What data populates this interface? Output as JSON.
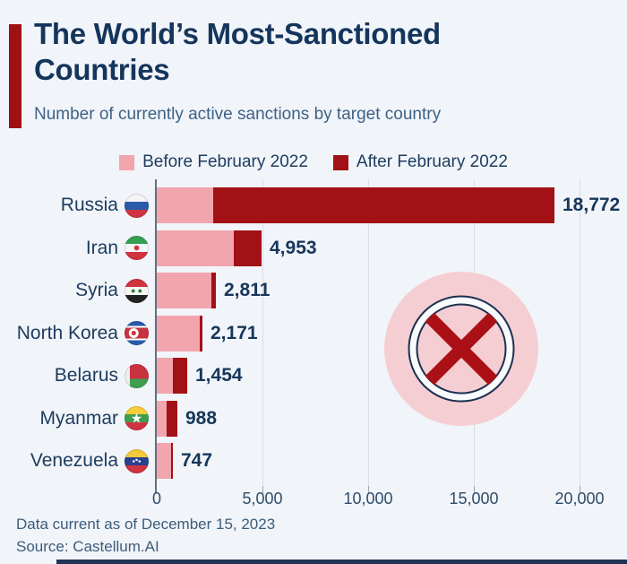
{
  "header": {
    "title": "The World’s Most-Sanctioned Countries",
    "subtitle": "Number of currently active sanctions by target country"
  },
  "legend": {
    "before_label": "Before February 2022",
    "after_label": "After February 2022"
  },
  "colors": {
    "background": "#f1f4f9",
    "accent": "#9e1014",
    "title": "#14355c",
    "subtitle": "#3e6286",
    "before": "#f3a5ae",
    "after": "#a21116",
    "icon_pink": "#f5ced3",
    "icon_navy": "#1c3050",
    "icon_x": "#ab1016"
  },
  "chart_data": {
    "type": "bar",
    "orientation": "horizontal",
    "stacked": true,
    "grid": true,
    "categories": [
      "Russia",
      "Iran",
      "Syria",
      "North Korea",
      "Belarus",
      "Myanmar",
      "Venezuela"
    ],
    "totals": [
      18772,
      4953,
      2811,
      2171,
      1454,
      988,
      747
    ],
    "total_labels": [
      "18,772",
      "4,953",
      "2,811",
      "2,171",
      "1,454",
      "988",
      "747"
    ],
    "series": [
      {
        "name": "Before February 2022",
        "values": [
          2660,
          3650,
          2600,
          2050,
          760,
          465,
          680
        ]
      },
      {
        "name": "After February 2022",
        "values": [
          16112,
          1303,
          211,
          121,
          694,
          523,
          67
        ]
      }
    ],
    "xlim": [
      0,
      20000
    ],
    "xtick_values": [
      0,
      5000,
      10000,
      15000,
      20000
    ],
    "xticks": [
      "0",
      "5,000",
      "10,000",
      "15,000",
      "20,000"
    ],
    "flags": [
      "russia-flag",
      "iran-flag",
      "syria-flag",
      "north-korea-flag",
      "belarus-flag",
      "myanmar-flag",
      "venezuela-flag"
    ]
  },
  "footer": {
    "note": "Data current as of December 15, 2023",
    "source": "Source: Castellum.AI"
  }
}
